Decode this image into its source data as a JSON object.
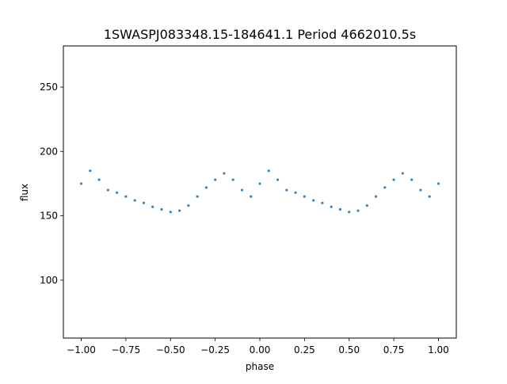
{
  "chart_data": {
    "type": "scatter",
    "title": "1SWASPJ083348.15-184641.1 Period 4662010.5s",
    "xlabel": "phase",
    "ylabel": "flux",
    "xlim": [
      -1.1,
      1.1
    ],
    "ylim": [
      55,
      282
    ],
    "x_ticks": [
      -1.0,
      -0.75,
      -0.5,
      -0.25,
      0.0,
      0.25,
      0.5,
      0.75,
      1.0
    ],
    "x_tick_labels": [
      "−1.00",
      "−0.75",
      "−0.50",
      "−0.25",
      "0.00",
      "0.25",
      "0.50",
      "0.75",
      "1.00"
    ],
    "y_ticks": [
      100,
      150,
      200,
      250
    ],
    "y_tick_labels": [
      "100",
      "150",
      "200",
      "250"
    ],
    "grid": false,
    "legend": "none",
    "marker_color": "#1f77b4",
    "series": [
      {
        "x": [
          -1.0,
          -0.95,
          -0.9,
          -0.85,
          -0.8,
          -0.75,
          -0.7,
          -0.65,
          -0.6,
          -0.55,
          -0.5,
          -0.45,
          -0.4,
          -0.35,
          -0.3,
          -0.25,
          -0.2,
          -0.15,
          -0.1,
          -0.05,
          0.0,
          0.05,
          0.1,
          0.15,
          0.2,
          0.25,
          0.3,
          0.35,
          0.4,
          0.45,
          0.5,
          0.55,
          0.6,
          0.65,
          0.7,
          0.75,
          0.8,
          0.85,
          0.9,
          0.95,
          1.0
        ],
        "y": [
          175,
          185,
          178,
          170,
          168,
          165,
          162,
          160,
          157,
          155,
          153,
          154,
          158,
          165,
          172,
          178,
          183,
          178,
          170,
          165,
          175,
          185,
          178,
          170,
          168,
          165,
          162,
          160,
          157,
          155,
          153,
          154,
          158,
          165,
          172,
          178,
          183,
          178,
          170,
          165,
          175
        ]
      }
    ]
  }
}
